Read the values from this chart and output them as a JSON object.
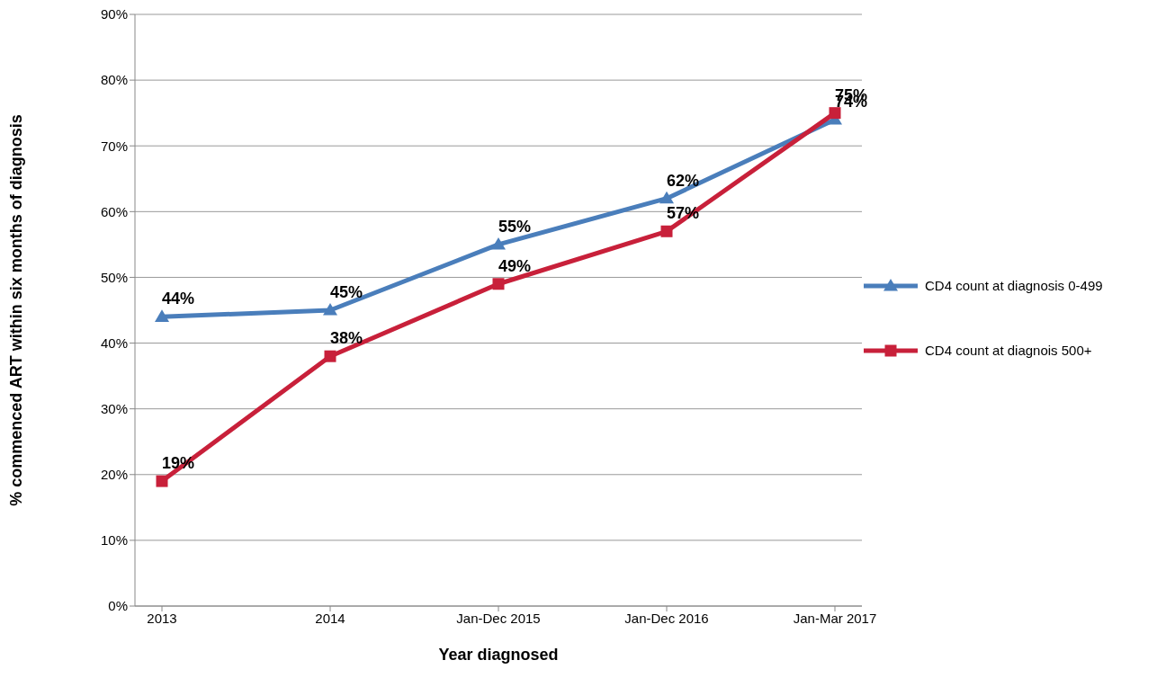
{
  "chart_data": {
    "type": "line",
    "xlabel": "Year diagnosed",
    "ylabel": "% commenced ART within six months of diagnosis",
    "categories": [
      "2013",
      "2014",
      "Jan-Dec 2015",
      "Jan-Dec 2016",
      "Jan-Mar 2017"
    ],
    "series": [
      {
        "name": "CD4 count at diagnosis 0-499",
        "color": "#4a7ebb",
        "marker": "triangle",
        "values": [
          44,
          45,
          55,
          62,
          74
        ],
        "value_labels": [
          "44%",
          "45%",
          "55%",
          "62%",
          "74%"
        ]
      },
      {
        "name": "CD4 count at diagnois 500+",
        "color": "#c8203a",
        "marker": "square",
        "values": [
          19,
          38,
          49,
          57,
          75
        ],
        "value_labels": [
          "19%",
          "38%",
          "49%",
          "57%",
          "75%"
        ]
      }
    ],
    "ylim": [
      0,
      90
    ],
    "yticks": [
      {
        "value": 0,
        "label": "0%"
      },
      {
        "value": 10,
        "label": "10%"
      },
      {
        "value": 20,
        "label": "20%"
      },
      {
        "value": 30,
        "label": "30%"
      },
      {
        "value": 40,
        "label": "40%"
      },
      {
        "value": 50,
        "label": "50%"
      },
      {
        "value": 60,
        "label": "60%"
      },
      {
        "value": 70,
        "label": "70%"
      },
      {
        "value": 80,
        "label": "80%"
      },
      {
        "value": 90,
        "label": "90%"
      }
    ],
    "grid": "y",
    "legend": "right",
    "line_style": "solid"
  }
}
